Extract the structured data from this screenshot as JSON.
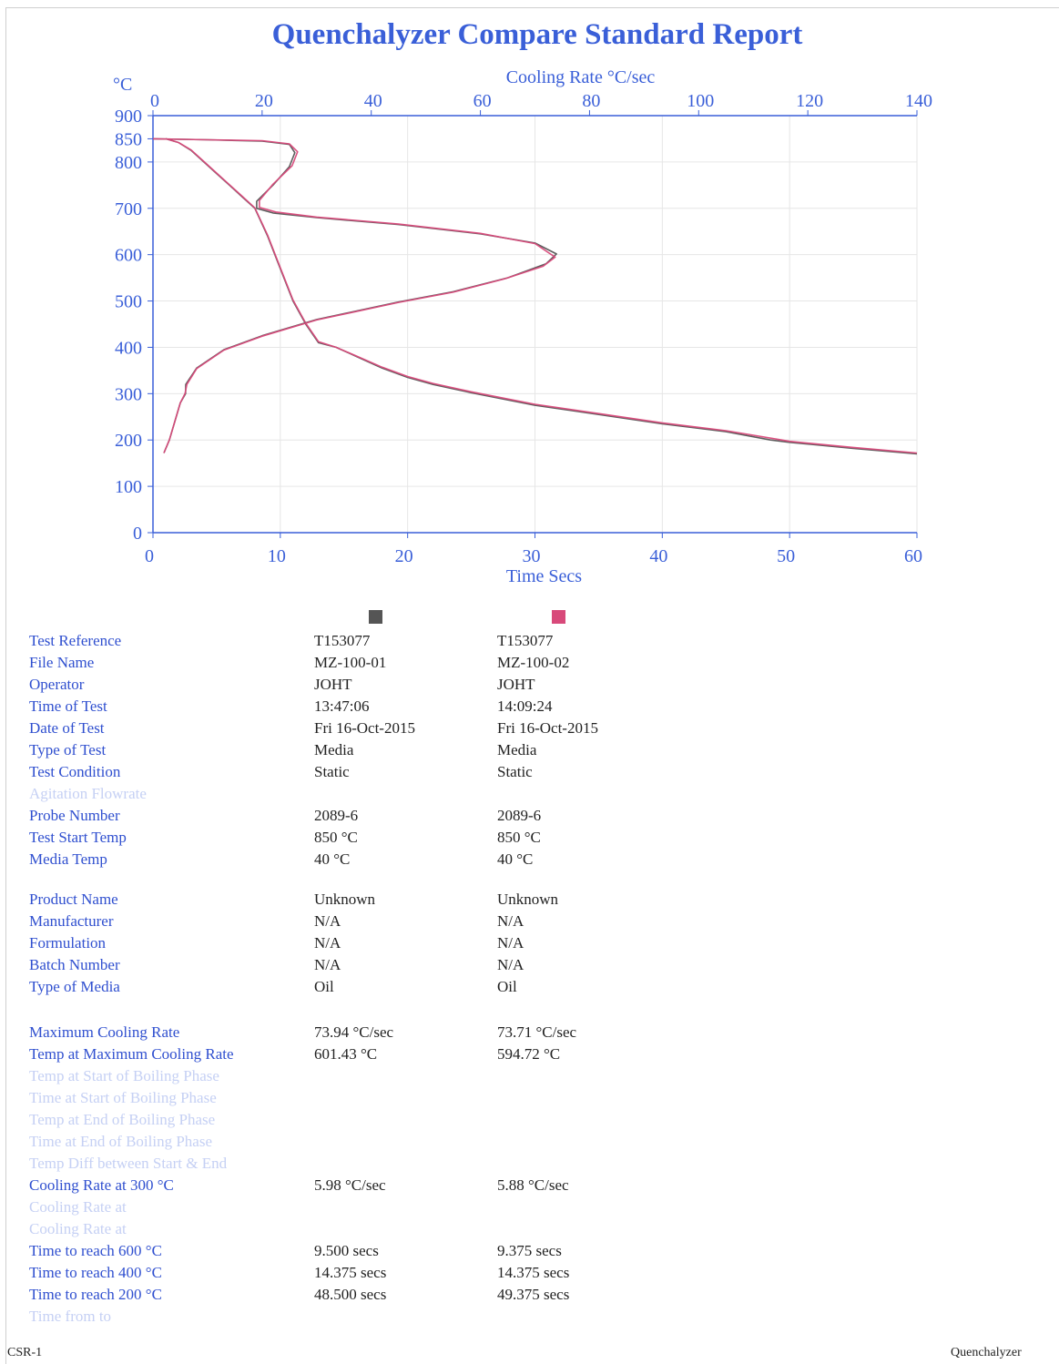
{
  "report": {
    "title": "Quenchalyzer Compare Standard Report",
    "footer_left": "CSR-1",
    "footer_right": "Quenchalyzer"
  },
  "colors": {
    "series1": "#555555",
    "series2": "#d8497a",
    "axis": "#3a5fd8"
  },
  "chart_data": {
    "type": "line",
    "temp_unit_label": "°C",
    "x_axis_label": "Time  Secs",
    "x2_axis_label": "Cooling Rate  °C/sec",
    "x_ticks": [
      0,
      10,
      20,
      30,
      40,
      50,
      60
    ],
    "x2_ticks": [
      0,
      20,
      40,
      60,
      80,
      100,
      120,
      140
    ],
    "y_ticks": [
      0,
      100,
      200,
      300,
      400,
      500,
      600,
      700,
      800,
      850,
      900
    ],
    "xlim": [
      0,
      60
    ],
    "x2lim": [
      0,
      140
    ],
    "ylim": [
      0,
      900
    ],
    "series": [
      {
        "kind": "temperature_vs_time",
        "x_axis": "Time  Secs",
        "points": [
          [
            1,
            850
          ],
          [
            2,
            842
          ],
          [
            3,
            825
          ],
          [
            4,
            800
          ],
          [
            5,
            775
          ],
          [
            6,
            750
          ],
          [
            7,
            725
          ],
          [
            8,
            700
          ],
          [
            9,
            640
          ],
          [
            10,
            570
          ],
          [
            11,
            500
          ],
          [
            12,
            450
          ],
          [
            13,
            410
          ],
          [
            14.375,
            400
          ],
          [
            16,
            380
          ],
          [
            18,
            355
          ],
          [
            20,
            335
          ],
          [
            22,
            320
          ],
          [
            25,
            302
          ],
          [
            30,
            275
          ],
          [
            35,
            255
          ],
          [
            40,
            235
          ],
          [
            45,
            218
          ],
          [
            48.5,
            200
          ],
          [
            50,
            195
          ],
          [
            55,
            182
          ],
          [
            60,
            170
          ]
        ]
      },
      {
        "kind": "temperature_vs_time",
        "x_axis": "Time  Secs",
        "points": [
          [
            1,
            850
          ],
          [
            2,
            842
          ],
          [
            3,
            826
          ],
          [
            4,
            801
          ],
          [
            5,
            776
          ],
          [
            6,
            751
          ],
          [
            7,
            726
          ],
          [
            8,
            701
          ],
          [
            9,
            642
          ],
          [
            10,
            572
          ],
          [
            11,
            502
          ],
          [
            12,
            452
          ],
          [
            13,
            412
          ],
          [
            14.375,
            400
          ],
          [
            16,
            381
          ],
          [
            18,
            357
          ],
          [
            20,
            337
          ],
          [
            22,
            322
          ],
          [
            25,
            304
          ],
          [
            30,
            277
          ],
          [
            35,
            257
          ],
          [
            40,
            237
          ],
          [
            45,
            220
          ],
          [
            49.375,
            200
          ],
          [
            50,
            197
          ],
          [
            55,
            184
          ],
          [
            60,
            172
          ]
        ]
      },
      {
        "kind": "temperature_vs_cooling_rate",
        "x_axis": "Cooling Rate  °C/sec",
        "points": [
          [
            0,
            850
          ],
          [
            10,
            848
          ],
          [
            20,
            845
          ],
          [
            25,
            838
          ],
          [
            26,
            820
          ],
          [
            25,
            790
          ],
          [
            22,
            750
          ],
          [
            19,
            715
          ],
          [
            19,
            700
          ],
          [
            22,
            690
          ],
          [
            30,
            680
          ],
          [
            45,
            665
          ],
          [
            60,
            645
          ],
          [
            70,
            625
          ],
          [
            73.94,
            601.43
          ],
          [
            72,
            580
          ],
          [
            65,
            550
          ],
          [
            55,
            520
          ],
          [
            45,
            498
          ],
          [
            30,
            460
          ],
          [
            20,
            425
          ],
          [
            13,
            395
          ],
          [
            8,
            355
          ],
          [
            6,
            320
          ],
          [
            5.98,
            300
          ],
          [
            5,
            280
          ],
          [
            4,
            240
          ],
          [
            3,
            200
          ],
          [
            2,
            172
          ]
        ]
      },
      {
        "kind": "temperature_vs_cooling_rate",
        "x_axis": "Cooling Rate  °C/sec",
        "points": [
          [
            0,
            850
          ],
          [
            10,
            848
          ],
          [
            20,
            846
          ],
          [
            25,
            839
          ],
          [
            26.5,
            822
          ],
          [
            25.5,
            792
          ],
          [
            22,
            752
          ],
          [
            19.5,
            717
          ],
          [
            19.5,
            702
          ],
          [
            22.5,
            692
          ],
          [
            30,
            681
          ],
          [
            45,
            666
          ],
          [
            60,
            646
          ],
          [
            70,
            624
          ],
          [
            73.71,
            594.72
          ],
          [
            71.5,
            575
          ],
          [
            64.5,
            548
          ],
          [
            55,
            519
          ],
          [
            45,
            497
          ],
          [
            30,
            459
          ],
          [
            20,
            424
          ],
          [
            13,
            394
          ],
          [
            8,
            354
          ],
          [
            6.2,
            320
          ],
          [
            5.88,
            300
          ],
          [
            5,
            280
          ],
          [
            4,
            240
          ],
          [
            3,
            200
          ],
          [
            2,
            172
          ]
        ]
      }
    ]
  },
  "table": {
    "rows": [
      {
        "label": "Test Reference",
        "v1": "T153077",
        "v2": "T153077",
        "faint": false
      },
      {
        "label": "File Name",
        "v1": "MZ-100-01",
        "v2": "MZ-100-02",
        "faint": false
      },
      {
        "label": "Operator",
        "v1": "JOHT",
        "v2": "JOHT",
        "faint": false
      },
      {
        "label": "Time of Test",
        "v1": "13:47:06",
        "v2": "14:09:24",
        "faint": false
      },
      {
        "label": "Date of Test",
        "v1": "Fri 16-Oct-2015",
        "v2": "Fri 16-Oct-2015",
        "faint": false
      },
      {
        "label": "Type of Test",
        "v1": "Media",
        "v2": "Media",
        "faint": false
      },
      {
        "label": "Test Condition",
        "v1": "Static",
        "v2": "Static",
        "faint": false
      },
      {
        "label": "Agitation Flowrate",
        "v1": "",
        "v2": "",
        "faint": true
      },
      {
        "label": "Probe Number",
        "v1": "2089-6",
        "v2": "2089-6",
        "faint": false
      },
      {
        "label": "Test Start Temp",
        "v1": "850 °C",
        "v2": "850 °C",
        "faint": false
      },
      {
        "label": "Media Temp",
        "v1": "40 °C",
        "v2": "40 °C",
        "faint": false
      },
      {
        "label": "Product Name",
        "v1": "Unknown",
        "v2": "Unknown",
        "faint": false
      },
      {
        "label": "Manufacturer",
        "v1": "N/A",
        "v2": "N/A",
        "faint": false
      },
      {
        "label": "Formulation",
        "v1": "N/A",
        "v2": "N/A",
        "faint": false
      },
      {
        "label": "Batch Number",
        "v1": "N/A",
        "v2": "N/A",
        "faint": false
      },
      {
        "label": "Type of Media",
        "v1": "Oil",
        "v2": "Oil",
        "faint": false
      },
      {
        "label": "Maximum Cooling Rate",
        "v1": "73.94  °C/sec",
        "v2": "73.71  °C/sec",
        "faint": false
      },
      {
        "label": "Temp at Maximum Cooling Rate",
        "v1": "601.43  °C",
        "v2": "594.72  °C",
        "faint": false
      },
      {
        "label": "Temp at Start of Boiling Phase",
        "v1": "",
        "v2": "",
        "faint": true
      },
      {
        "label": "Time at Start of Boiling Phase",
        "v1": "",
        "v2": "",
        "faint": true
      },
      {
        "label": "Temp at End of Boiling Phase",
        "v1": "",
        "v2": "",
        "faint": true
      },
      {
        "label": "Time at End of Boiling Phase",
        "v1": "",
        "v2": "",
        "faint": true
      },
      {
        "label": "Temp Diff between Start & End",
        "v1": "",
        "v2": "",
        "faint": true
      },
      {
        "label": "Cooling Rate at 300 °C",
        "v1": "5.98  °C/sec",
        "v2": "5.88  °C/sec",
        "faint": false
      },
      {
        "label": "Cooling Rate at",
        "v1": "",
        "v2": "",
        "faint": true
      },
      {
        "label": "Cooling Rate at",
        "v1": "",
        "v2": "",
        "faint": true
      },
      {
        "label": "Time to reach 600 °C",
        "v1": "9.500 secs",
        "v2": "9.375 secs",
        "faint": false
      },
      {
        "label": "Time to reach 400 °C",
        "v1": "14.375 secs",
        "v2": "14.375 secs",
        "faint": false
      },
      {
        "label": "Time to reach 200 °C",
        "v1": "48.500 secs",
        "v2": "49.375 secs",
        "faint": false
      },
      {
        "label": "Time from      to",
        "v1": "",
        "v2": "",
        "faint": true
      }
    ]
  }
}
